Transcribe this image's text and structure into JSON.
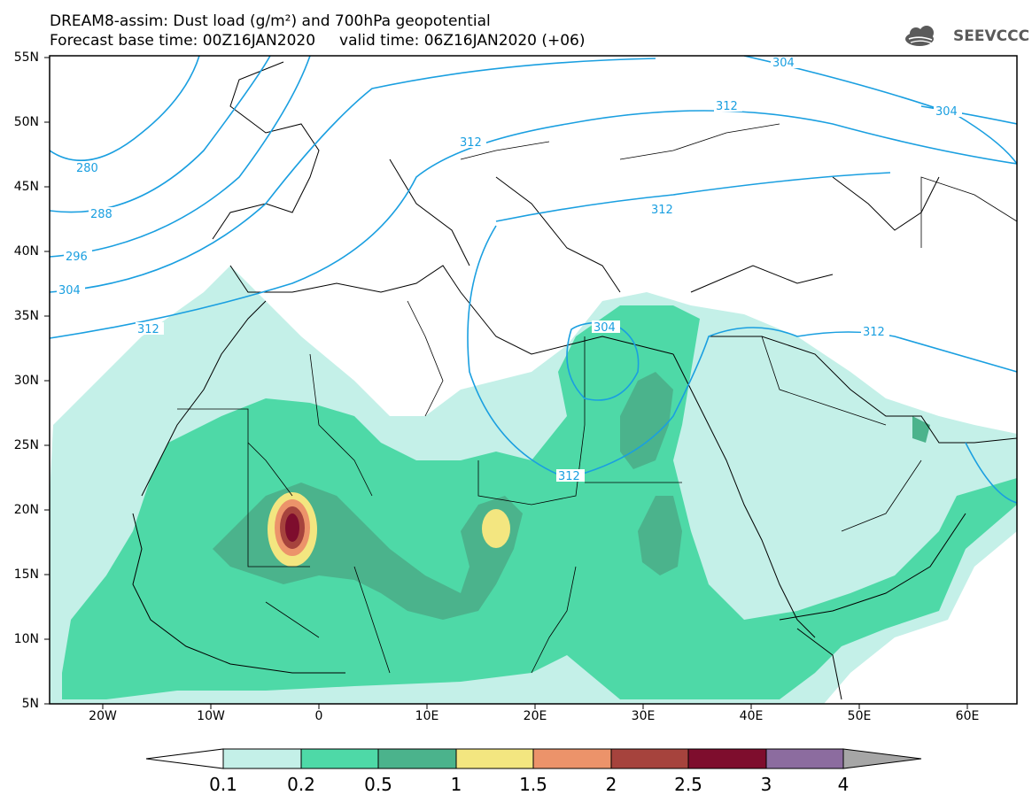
{
  "title": {
    "line1": "DREAM8-assim: Dust load (g/m²) and 700hPa geopotential",
    "line2": "Forecast base time: 00Z16JAN2020     valid time: 06Z16JAN2020 (+06)"
  },
  "logo": {
    "text": "SEEVCCC",
    "icon": "cloud-logo-icon"
  },
  "map": {
    "lat_labels": [
      "55N",
      "50N",
      "45N",
      "40N",
      "35N",
      "30N",
      "25N",
      "20N",
      "15N",
      "10N",
      "5N"
    ],
    "lon_labels": [
      "20W",
      "10W",
      "0",
      "10E",
      "20E",
      "30E",
      "40E",
      "50E",
      "60E"
    ],
    "contour_labels": [
      "280",
      "288",
      "296",
      "304",
      "312",
      "312",
      "312",
      "312",
      "304",
      "304",
      "304",
      "312",
      "312"
    ]
  },
  "colorbar": {
    "labels": [
      "0.1",
      "0.2",
      "0.5",
      "1",
      "1.5",
      "2",
      "2.5",
      "3",
      "4"
    ],
    "colors": [
      "#c4f0e8",
      "#4ed9a7",
      "#4bb38c",
      "#f3e680",
      "#ec936a",
      "#a6433d",
      "#7e0d2d",
      "#8c6c9f",
      "#a6a6a6"
    ],
    "contour_color": "#1a9fe0",
    "border_color": "#000000"
  }
}
